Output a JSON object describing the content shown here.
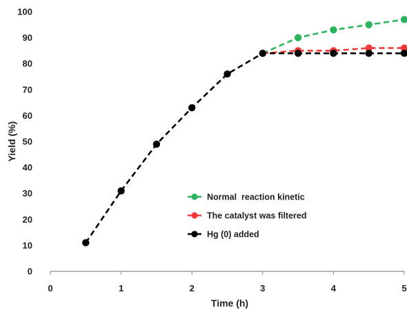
{
  "chart_data": {
    "type": "line",
    "xlabel": "Time (h)",
    "ylabel": "Yield (%)",
    "xlim": [
      0,
      5
    ],
    "ylim": [
      0,
      100
    ],
    "x_ticks": [
      0,
      1,
      2,
      3,
      4,
      5
    ],
    "y_ticks": [
      0,
      10,
      20,
      30,
      40,
      50,
      60,
      70,
      80,
      90,
      100
    ],
    "grid": false,
    "legend_position": "center",
    "series": [
      {
        "name": "Normal  reaction kinetic",
        "color": "#2fb25f",
        "x": [
          3,
          3.5,
          4,
          4.5,
          5
        ],
        "y": [
          84,
          90,
          93,
          95,
          97
        ]
      },
      {
        "name": "The catalyst was filtered",
        "color": "#ee3b3b",
        "x": [
          3,
          3.5,
          4,
          4.5,
          5
        ],
        "y": [
          84,
          85,
          85,
          86,
          86
        ]
      },
      {
        "name": "Hg (0) added",
        "color": "#000000",
        "x": [
          0.5,
          1,
          1.5,
          2,
          2.5,
          3,
          3.5,
          4,
          4.5,
          5
        ],
        "y": [
          11,
          31,
          49,
          63,
          76,
          84,
          84,
          84,
          84,
          84
        ]
      }
    ]
  }
}
